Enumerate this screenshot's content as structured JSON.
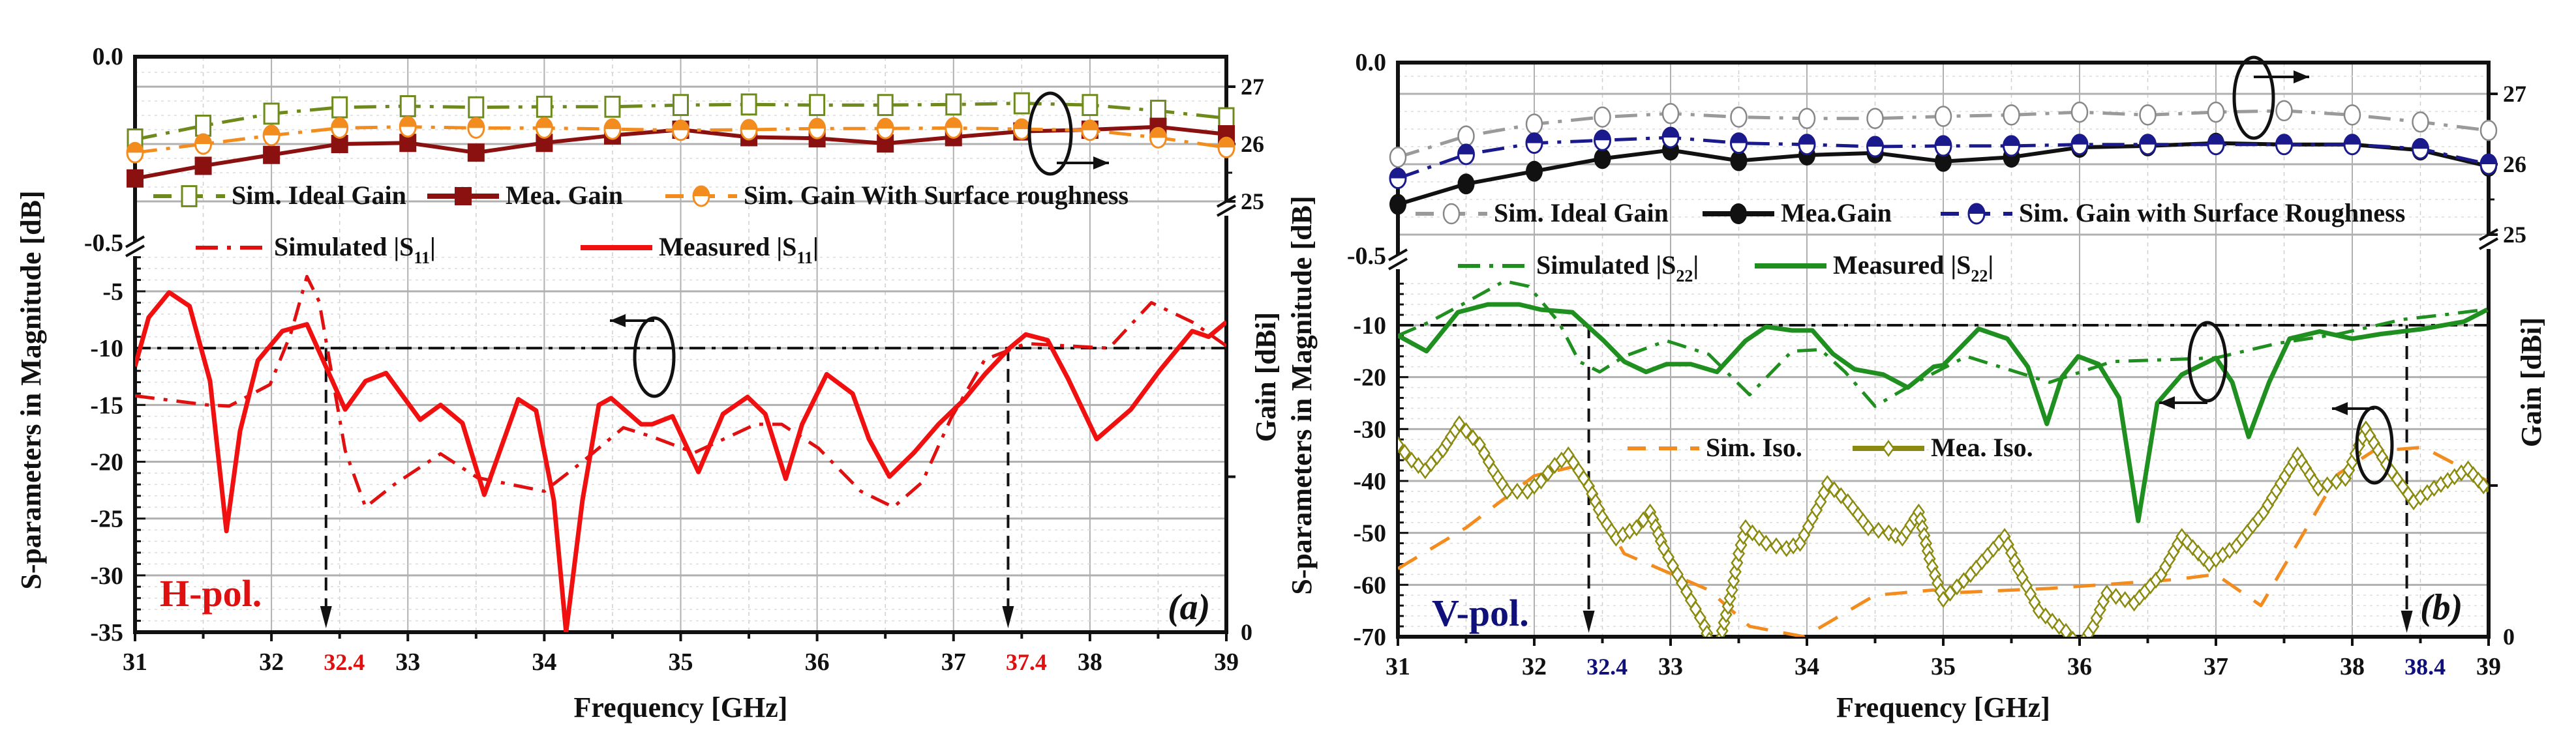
{
  "chart_data": [
    {
      "type": "line",
      "panel_label": "(a)",
      "polarization": "H-pol.",
      "polarization_color": "#e01010",
      "xlabel": "Frequency  [GHz]",
      "ylabel_left": "S-parameters in Magnitude [dB]",
      "ylabel_right": "Gain [dBi]",
      "xlim": [
        31,
        39
      ],
      "x_ticks": [
        "31",
        "32",
        "33",
        "34",
        "35",
        "36",
        "37",
        "38",
        "39"
      ],
      "marked_frequencies": [
        "32.4",
        "37.4"
      ],
      "marked_color": "#e01010",
      "reference_level_db": -10,
      "left_upper_ticks": [
        "0.0",
        "-0.5"
      ],
      "left_lower_ticks": [
        "-5",
        "-10",
        "-15",
        "-20",
        "-25",
        "-30",
        "-35"
      ],
      "left_lower_range": [
        -35,
        -2
      ],
      "right_ticks": [
        "27",
        "26",
        "25",
        "0"
      ],
      "series": [
        {
          "name": "Sim. Ideal Gain",
          "axis": "gain",
          "line": "dash",
          "color": "#6f8a1c",
          "marker": "open-square",
          "x": [
            31,
            31.5,
            32,
            32.5,
            33,
            33.5,
            34,
            34.5,
            35,
            35.5,
            36,
            36.5,
            37,
            37.5,
            38,
            38.5,
            39
          ],
          "y": [
            26.08,
            26.32,
            26.53,
            26.64,
            26.66,
            26.64,
            26.65,
            26.65,
            26.68,
            26.69,
            26.68,
            26.68,
            26.69,
            26.71,
            26.68,
            26.58,
            26.45
          ]
        },
        {
          "name": "Mea. Gain",
          "axis": "gain",
          "line": "solid",
          "color": "#8b1010",
          "marker": "filled-square",
          "x": [
            31,
            31.5,
            32,
            32.5,
            33,
            33.5,
            34,
            34.5,
            35,
            35.5,
            36,
            36.5,
            37,
            37.5,
            38,
            38.5,
            39
          ],
          "y": [
            25.4,
            25.62,
            25.81,
            26.0,
            26.02,
            25.85,
            26.02,
            26.15,
            26.25,
            26.12,
            26.1,
            26.01,
            26.12,
            26.22,
            26.25,
            26.3,
            26.17
          ]
        },
        {
          "name": "Sim. Gain With Surface roughness",
          "axis": "gain",
          "line": "dash",
          "color": "#f28c1f",
          "marker": "half-circle",
          "x": [
            31,
            31.5,
            32,
            32.5,
            33,
            33.5,
            34,
            34.5,
            35,
            35.5,
            36,
            36.5,
            37,
            37.5,
            38,
            38.5,
            39
          ],
          "y": [
            25.85,
            26.0,
            26.15,
            26.28,
            26.3,
            26.28,
            26.28,
            26.26,
            26.24,
            26.25,
            26.27,
            26.27,
            26.28,
            26.26,
            26.24,
            26.11,
            25.94
          ]
        },
        {
          "name": "Simulated |S11|",
          "axis": "s",
          "line": "dashdot",
          "color": "#e01010",
          "marker": "none",
          "x": [
            31,
            31.53,
            31.69,
            31.99,
            32.14,
            32.26,
            32.35,
            32.54,
            32.69,
            32.9,
            33.24,
            33.51,
            34.0,
            34.28,
            34.58,
            34.79,
            35.1,
            35.55,
            35.74,
            36.01,
            36.32,
            36.56,
            36.77,
            36.98,
            37.23,
            37.53,
            38.14,
            38.45,
            38.75,
            39.0
          ],
          "y": [
            -14.2,
            -15,
            -15.1,
            -13.2,
            -8.8,
            -3.7,
            -5.9,
            -19,
            -24,
            -22,
            -19.3,
            -21.4,
            -22.6,
            -20,
            -17,
            -17.8,
            -19.2,
            -16.7,
            -16.7,
            -18.8,
            -22.6,
            -24,
            -21.8,
            -16.2,
            -11,
            -9.6,
            -10,
            -6,
            -7.7,
            -9.8
          ]
        },
        {
          "name": "Measured |S11|",
          "axis": "s",
          "line": "solid",
          "color": "#f01010",
          "marker": "none",
          "x": [
            31,
            31.1,
            31.25,
            31.4,
            31.55,
            31.67,
            31.77,
            31.9,
            32.08,
            32.26,
            32.54,
            32.69,
            32.84,
            33.09,
            33.24,
            33.4,
            33.56,
            33.81,
            33.94,
            34.07,
            34.16,
            34.28,
            34.4,
            34.49,
            34.71,
            34.79,
            34.94,
            35.13,
            35.31,
            35.49,
            35.62,
            35.77,
            35.89,
            36.07,
            36.26,
            36.38,
            36.53,
            36.71,
            36.89,
            37.08,
            37.23,
            37.41,
            37.53,
            37.69,
            37.84,
            38.05,
            38.3,
            38.51,
            38.75,
            38.87,
            39.0
          ],
          "y": [
            -11.6,
            -7.3,
            -5.1,
            -6.3,
            -12.9,
            -26.1,
            -17.3,
            -11.1,
            -8.5,
            -7.9,
            -15.4,
            -12.9,
            -12.2,
            -16.3,
            -15,
            -16.6,
            -22.9,
            -14.5,
            -15.5,
            -23.4,
            -35,
            -23.4,
            -15,
            -14.4,
            -16.7,
            -16.7,
            -16,
            -20.9,
            -15.8,
            -14.3,
            -15.8,
            -21.5,
            -16.7,
            -12.3,
            -14,
            -18,
            -21.3,
            -19.2,
            -16.7,
            -14.5,
            -12.3,
            -10,
            -8.8,
            -9.3,
            -12.7,
            -18,
            -15.4,
            -12,
            -8.5,
            -9,
            -7.7
          ]
        }
      ],
      "legend_rows": [
        [
          "Sim. Ideal Gain",
          "Mea. Gain",
          "Sim. Gain With Surface roughness"
        ],
        [
          "Simulated |S11|",
          "Measured |S11|"
        ]
      ]
    },
    {
      "type": "line",
      "panel_label": "(b)",
      "polarization": "V-pol.",
      "polarization_color": "#10107a",
      "xlabel": "Frequency  [GHz]",
      "ylabel_left": "S-parameters in Magnitude [dB]",
      "ylabel_right": "Gain [dBi]",
      "xlim": [
        31,
        39
      ],
      "x_ticks": [
        "31",
        "32",
        "33",
        "34",
        "35",
        "36",
        "37",
        "38",
        "39"
      ],
      "marked_frequencies": [
        "32.4",
        "38.4"
      ],
      "marked_color": "#10107a",
      "reference_level_db": -10,
      "left_upper_ticks": [
        "0.0",
        "-0.5"
      ],
      "left_lower_ticks": [
        "-10",
        "-20",
        "-30",
        "-40",
        "-50",
        "-60",
        "-70"
      ],
      "left_lower_range": [
        -70,
        -1
      ],
      "right_ticks": [
        "27",
        "26",
        "25",
        "0"
      ],
      "series": [
        {
          "name": "Sim. Ideal  Gain",
          "axis": "gain",
          "line": "dash",
          "color": "#9a9a9a",
          "marker": "open-circle",
          "x": [
            31,
            31.5,
            32,
            32.5,
            33,
            33.5,
            34,
            34.5,
            35,
            35.5,
            36,
            36.5,
            37,
            37.5,
            38,
            38.5,
            39
          ],
          "y": [
            26.1,
            26.4,
            26.57,
            26.67,
            26.72,
            26.67,
            26.65,
            26.65,
            26.68,
            26.7,
            26.74,
            26.7,
            26.74,
            26.76,
            26.7,
            26.6,
            26.48
          ]
        },
        {
          "name": "Mea.Gain",
          "axis": "gain",
          "line": "solid",
          "color": "#111111",
          "marker": "filled-circle",
          "x": [
            31,
            31.5,
            32,
            32.5,
            33,
            33.5,
            34,
            34.5,
            35,
            35.5,
            36,
            36.5,
            37,
            37.5,
            38,
            38.5,
            39
          ],
          "y": [
            25.43,
            25.72,
            25.9,
            26.08,
            26.2,
            26.05,
            26.13,
            26.16,
            26.04,
            26.1,
            26.24,
            26.26,
            26.3,
            26.28,
            26.28,
            26.2,
            25.97
          ]
        },
        {
          "name": "Sim. Gain with Surface Roughness",
          "axis": "gain",
          "line": "dash",
          "color": "#1a1a8c",
          "marker": "half-circle",
          "x": [
            31,
            31.5,
            32,
            32.5,
            33,
            33.5,
            34,
            34.5,
            35,
            35.5,
            36,
            36.5,
            37,
            37.5,
            38,
            38.5,
            39
          ],
          "y": [
            25.8,
            26.14,
            26.3,
            26.34,
            26.38,
            26.3,
            26.28,
            26.25,
            26.26,
            26.26,
            26.28,
            26.28,
            26.28,
            26.28,
            26.28,
            26.22,
            26.0
          ]
        },
        {
          "name": "Simulated |S22|",
          "axis": "s",
          "line": "dashdot",
          "color": "#1f8f1f",
          "marker": "none",
          "x": [
            31,
            31.23,
            31.5,
            31.78,
            31.96,
            32.18,
            32.33,
            32.48,
            32.66,
            32.97,
            33.28,
            33.58,
            33.89,
            34.1,
            34.28,
            34.5,
            34.8,
            35.17,
            35.78,
            36.24,
            37.0,
            37.45,
            37.9,
            38.37,
            38.67,
            38.97
          ],
          "y": [
            -12,
            -9.4,
            -5.6,
            -1.5,
            -2.5,
            -9.4,
            -17,
            -19,
            -16,
            -13,
            -15.6,
            -23.4,
            -15,
            -14.7,
            -19,
            -25.6,
            -21,
            -16,
            -21,
            -17,
            -16.3,
            -13.5,
            -11.7,
            -8.9,
            -8,
            -7
          ]
        },
        {
          "name": "Measured |S22|",
          "axis": "s",
          "line": "solid",
          "color": "#1f8f1f",
          "marker": "none",
          "x": [
            31,
            31.21,
            31.44,
            31.66,
            31.89,
            32.05,
            32.28,
            32.51,
            32.66,
            32.82,
            32.97,
            33.15,
            33.34,
            33.55,
            33.7,
            33.89,
            34.04,
            34.19,
            34.35,
            34.56,
            34.74,
            34.93,
            35.0,
            35.26,
            35.47,
            35.62,
            35.76,
            35.87,
            35.99,
            36.14,
            36.29,
            36.43,
            36.57,
            36.75,
            37.0,
            37.12,
            37.24,
            37.39,
            37.54,
            37.76,
            38.0,
            38.21,
            38.52,
            38.82,
            38.99
          ],
          "y": [
            -12,
            -15,
            -7.5,
            -6,
            -6,
            -7,
            -7.5,
            -13,
            -17,
            -19,
            -17.5,
            -17.5,
            -19,
            -13,
            -10.3,
            -11,
            -11,
            -15.5,
            -18.5,
            -19.5,
            -22,
            -18,
            -17.7,
            -10.7,
            -12.6,
            -18,
            -29,
            -20,
            -16,
            -17.5,
            -24,
            -47.7,
            -25,
            -19.5,
            -16.3,
            -21,
            -31.5,
            -21,
            -12.6,
            -11.2,
            -12.6,
            -11.7,
            -10.7,
            -9.3,
            -7
          ]
        },
        {
          "name": "Sim. Iso.",
          "axis": "s",
          "line": "longdash",
          "color": "#f28c1f",
          "marker": "none",
          "x": [
            31,
            31.5,
            32.0,
            32.33,
            32.42,
            32.66,
            33.28,
            33.58,
            33.98,
            34.5,
            34.93,
            35.0,
            35.78,
            36.69,
            37.0,
            37.33,
            37.9,
            38.15,
            38.52,
            38.99
          ],
          "y": [
            -56.9,
            -49,
            -39,
            -37,
            -43,
            -54,
            -61,
            -68,
            -70,
            -62,
            -61,
            -61.6,
            -60.7,
            -59,
            -58,
            -64,
            -38.6,
            -34.3,
            -33.5,
            -40
          ]
        },
        {
          "name": "Mea. Iso.",
          "axis": "s",
          "line": "solid",
          "color": "#8a8a10",
          "marker": "open-diamond",
          "x": [
            31,
            31.1,
            31.2,
            31.33,
            31.45,
            31.6,
            31.7,
            31.8,
            31.95,
            32.05,
            32.15,
            32.25,
            32.4,
            32.5,
            32.6,
            32.75,
            32.85,
            32.95,
            33.05,
            33.15,
            33.25,
            33.3,
            33.35,
            33.45,
            33.5,
            33.55,
            33.7,
            33.85,
            33.95,
            34.1,
            34.15,
            34.3,
            34.45,
            34.6,
            34.7,
            34.82,
            34.9,
            35.0,
            35.2,
            35.45,
            35.55,
            35.7,
            35.9,
            36.0,
            36.1,
            36.2,
            36.4,
            36.6,
            36.75,
            36.95,
            37.15,
            37.35,
            37.6,
            37.75,
            37.95,
            38.1,
            38.25,
            38.45,
            38.6,
            38.85,
            39.0
          ],
          "y": [
            -33,
            -36,
            -38,
            -34,
            -29,
            -33,
            -38,
            -42,
            -42,
            -40,
            -37,
            -35,
            -41,
            -47,
            -51,
            -49,
            -46,
            -53,
            -58,
            -63,
            -68,
            -72,
            -72,
            -61,
            -54,
            -49,
            -52,
            -53,
            -52,
            -44,
            -40.5,
            -44,
            -49,
            -50,
            -51,
            -46,
            -55,
            -62.8,
            -58,
            -50.7,
            -57,
            -65,
            -69,
            -72,
            -68,
            -61.6,
            -63.5,
            -58,
            -50.7,
            -56,
            -52.5,
            -46,
            -35,
            -41.4,
            -39.5,
            -30,
            -36.8,
            -44,
            -41.4,
            -37.7,
            -42
          ]
        }
      ],
      "legend_rows": [
        [
          "Sim. Ideal  Gain",
          "Mea.Gain",
          "Sim. Gain with Surface Roughness"
        ],
        [
          "Simulated |S22|",
          "Measured |S22|"
        ],
        [
          "Sim. Iso.",
          "Mea. Iso."
        ]
      ]
    }
  ]
}
